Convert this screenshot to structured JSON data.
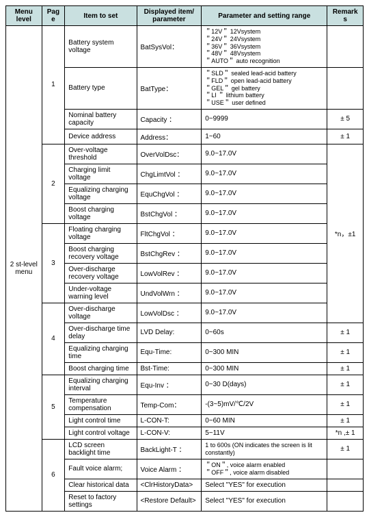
{
  "headers": {
    "menu": "Menu level",
    "page": "Page",
    "item": "Item to set",
    "disp": "Displayed item/ parameter",
    "param": "Parameter and setting range",
    "remarks": "Remarks"
  },
  "menu_level": "2 st-level menu",
  "pages": [
    "1",
    "2",
    "3",
    "4",
    "5",
    "6"
  ],
  "rows": {
    "r1": {
      "item": "Battery system voltage",
      "disp": "BatSysVol：",
      "param": "＂12V＂ 12Vsystem\n＂24V＂ 24Vsystem\n＂36V＂ 36Vsystem\n＂48V＂ 48Vsystem\n＂AUTO＂ auto recognition",
      "rem": ""
    },
    "r2": {
      "item": "Battery type",
      "disp": "BatType：",
      "param": "＂SLD＂ sealed lead-acid battery\n＂FLD＂ open lead-acid battery\n＂GEL＂ gel battery\n＂LI ＂ lithium battery\n＂USE＂ user defined",
      "rem": ""
    },
    "r3": {
      "item": "Nominal battery capacity",
      "disp": "Capacity ：",
      "param": "0~9999",
      "rem": "± 5"
    },
    "r4": {
      "item": "Device address",
      "disp": "Address：",
      "param": "1~60",
      "rem": "± 1"
    },
    "r5": {
      "item": "Over-voltage threshold",
      "disp": "OverVolDsc：",
      "param": "9.0~17.0V"
    },
    "r6": {
      "item": "Charging limit voltage",
      "disp": "ChgLimtVol ：",
      "param": "9.0~17.0V"
    },
    "r7": {
      "item": "Equalizing charging voltage",
      "disp": "EquChgVol ：",
      "param": "9.0~17.0V"
    },
    "r8": {
      "item": "Boost charging voltage",
      "disp": "BstChgVol ：",
      "param": "9.0~17.0V"
    },
    "r9": {
      "item": "Floating charging voltage",
      "disp": "FltChgVol ：",
      "param": "9.0~17.0V"
    },
    "r10": {
      "item": "Boost charging recovery voltage",
      "disp": "BstChgRev ：",
      "param": "9.0~17.0V"
    },
    "r11": {
      "item": "Over-discharge recovery voltage",
      "disp": "LowVolRev ：",
      "param": "9.0~17.0V"
    },
    "r12": {
      "item": "Under-voltage warning level",
      "disp": "UndVolWrn ：",
      "param": "9.0~17.0V"
    },
    "r13": {
      "item": "Over-discharge voltage",
      "disp": "LowVolDsc ：",
      "param": "9.0~17.0V"
    },
    "r14": {
      "item": "Over-discharge time delay",
      "disp": "LVD Delay:",
      "param": "0~60s",
      "rem": "± 1"
    },
    "r15": {
      "item": "Equalizing charging time",
      "disp": "Equ-Time:",
      "param": "0~300 MIN",
      "rem": "± 1"
    },
    "r16": {
      "item": "Boost charging time",
      "disp": "Bst-Time:",
      "param": "0~300 MIN",
      "rem": "± 1"
    },
    "r17": {
      "item": "Equalizing charging interval",
      "disp": "Equ-Inv ：",
      "param": "0~30  D(days)",
      "rem": "± 1"
    },
    "r18": {
      "item": "Temperature compensation",
      "disp": "Temp-Com：",
      "param": "-(3~5)mV/℃/2V",
      "rem": "± 1"
    },
    "r19": {
      "item": "Light control time",
      "disp": "L-CON-T:",
      "param": "0~60 MIN",
      "rem": "± 1"
    },
    "r20": {
      "item": "Light control voltage",
      "disp": "L-CON-V:",
      "param": "5~11V",
      "rem": "*n ,± 1"
    },
    "r21": {
      "item": "LCD screen backlight time",
      "disp": "BackLight-T ：",
      "param": "1 to 600s (ON indicates the screen is lit constantly)",
      "rem": "± 1"
    },
    "r22": {
      "item": "Fault voice alarm;",
      "disp": "Voice  Alarm ：",
      "param": "＂ON＂, voice alarm enabled\n＂OFF＂, voice alarm disabled",
      "rem": ""
    },
    "r23": {
      "item": "Clear historical data",
      "disp": "<ClrHistoryData>",
      "param": "Select \"YES\" for execution",
      "rem": ""
    },
    "r24": {
      "item": "Reset to factory settings",
      "disp": "<Restore Default>",
      "param": "Select \"YES\" for execution",
      "rem": ""
    }
  },
  "remarks_group": "*n，±1"
}
